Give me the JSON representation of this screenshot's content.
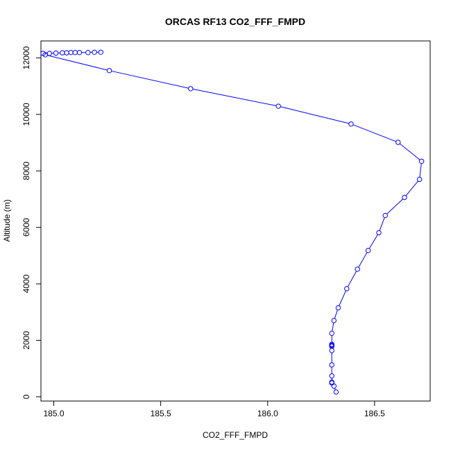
{
  "chart_data": {
    "type": "line",
    "title": "ORCAS RF13 CO2_FFF_FMPD",
    "xlabel": "CO2_FFF_FMPD",
    "ylabel": "Altitude (m)",
    "xlim": [
      184.94,
      186.76
    ],
    "ylim": [
      -150,
      12600
    ],
    "x_ticks": [
      185.0,
      185.5,
      186.0,
      186.5
    ],
    "x_tick_labels": [
      "185.0",
      "185.5",
      "186.0",
      "186.5"
    ],
    "y_ticks": [
      0,
      2000,
      4000,
      6000,
      8000,
      10000,
      12000
    ],
    "y_tick_labels": [
      "0",
      "2000",
      "4000",
      "6000",
      "8000",
      "10000",
      "12000"
    ],
    "grid": false,
    "line_color": "#0000ff",
    "marker": "open-circle",
    "series": [
      {
        "x": [
          185.22,
          185.19,
          185.16,
          185.12,
          185.1,
          185.08,
          185.06,
          185.04,
          185.01,
          184.98,
          184.95,
          184.96,
          185.26,
          185.64,
          186.05,
          186.39,
          186.61,
          186.72,
          186.71,
          186.64,
          186.55,
          186.52,
          186.47,
          186.42,
          186.37,
          186.33,
          186.31,
          186.3,
          186.3,
          186.3,
          186.3,
          186.3,
          186.3,
          186.3,
          186.3,
          186.3,
          186.3,
          186.31,
          186.32
        ],
        "y": [
          12200,
          12200,
          12190,
          12190,
          12190,
          12190,
          12180,
          12180,
          12170,
          12160,
          12160,
          12110,
          11550,
          10910,
          10290,
          9660,
          9010,
          8340,
          7700,
          7060,
          6420,
          5810,
          5180,
          4520,
          3830,
          3150,
          2700,
          2250,
          1860,
          1830,
          1820,
          1790,
          1640,
          1130,
          740,
          520,
          490,
          380,
          170
        ]
      }
    ]
  }
}
